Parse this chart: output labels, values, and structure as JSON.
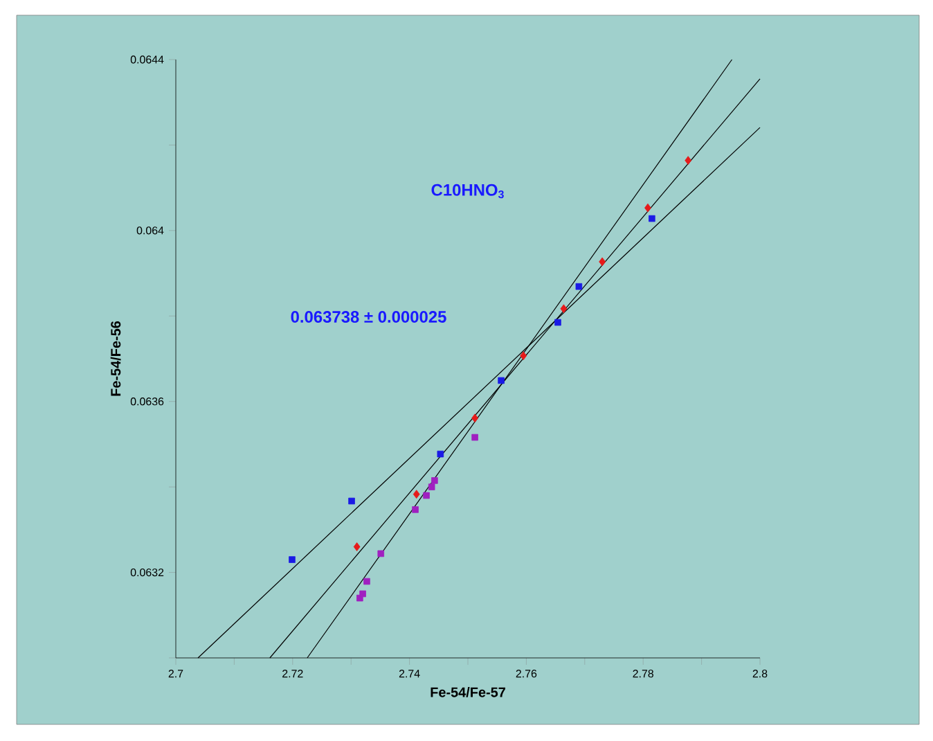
{
  "chart_data": {
    "type": "scatter",
    "xlabel": "Fe-54/Fe-57",
    "ylabel": "Fe-54/Fe-56",
    "annotations": [
      "C10HNO$_{3}$",
      "0.063738 ± 0.000025"
    ],
    "xlim": [
      2.7,
      2.8
    ],
    "ylim": [
      0.063,
      0.0644
    ],
    "xticks": [
      2.7,
      {
        "value": 2.71,
        "label": null
      },
      2.72,
      {
        "value": 2.73,
        "label": null
      },
      2.74,
      {
        "value": 2.75,
        "label": null
      },
      2.76,
      {
        "value": 2.77,
        "label": null
      },
      2.78,
      {
        "value": 2.79,
        "label": null
      },
      2.8
    ],
    "yticks": [
      {
        "value": 0.063,
        "label": null
      },
      0.0632,
      {
        "value": 0.0634,
        "label": null
      },
      0.0636,
      {
        "value": 0.0638,
        "label": null
      },
      0.064,
      {
        "value": 0.0642,
        "label": null
      },
      0.0644
    ],
    "marker": "square",
    "series": [
      {
        "type": "line",
        "color": "#000000",
        "marker": "none",
        "x": [
          2.7038,
          2.8
        ],
        "values": [
          0.063,
          0.064241
        ]
      },
      {
        "type": "line",
        "color": "#000000",
        "marker": "none",
        "x": [
          2.7161,
          2.8
        ],
        "values": [
          0.063,
          0.064355
        ]
      },
      {
        "type": "line",
        "color": "#000000",
        "marker": "none",
        "x": [
          2.7225,
          2.7952
        ],
        "values": [
          0.063,
          0.0644
        ]
      },
      {
        "color": "#1a1ae6",
        "x": [
          2.7199,
          2.7301,
          2.7453,
          2.7557,
          2.7654,
          2.769,
          2.7815
        ],
        "values": [
          0.06323,
          0.063367,
          0.063477,
          0.063649,
          0.063785,
          0.063869,
          0.064028
        ]
      },
      {
        "color": "#e61a1a",
        "marker": "diamond",
        "x": [
          2.731,
          2.7412,
          2.7512,
          2.7595,
          2.7664,
          2.773,
          2.7808,
          2.7877
        ],
        "values": [
          0.06326,
          0.063383,
          0.063561,
          0.063707,
          0.063817,
          0.063927,
          0.064053,
          0.064164
        ]
      },
      {
        "color": "#a020c0",
        "x": [
          2.7315,
          2.732,
          2.7327,
          2.7351,
          2.741,
          2.7429,
          2.7438,
          2.7443,
          2.7512
        ],
        "values": [
          0.06314,
          0.06315,
          0.063179,
          0.063244,
          0.063347,
          0.06338,
          0.0634,
          0.063415,
          0.063516
        ]
      }
    ]
  }
}
